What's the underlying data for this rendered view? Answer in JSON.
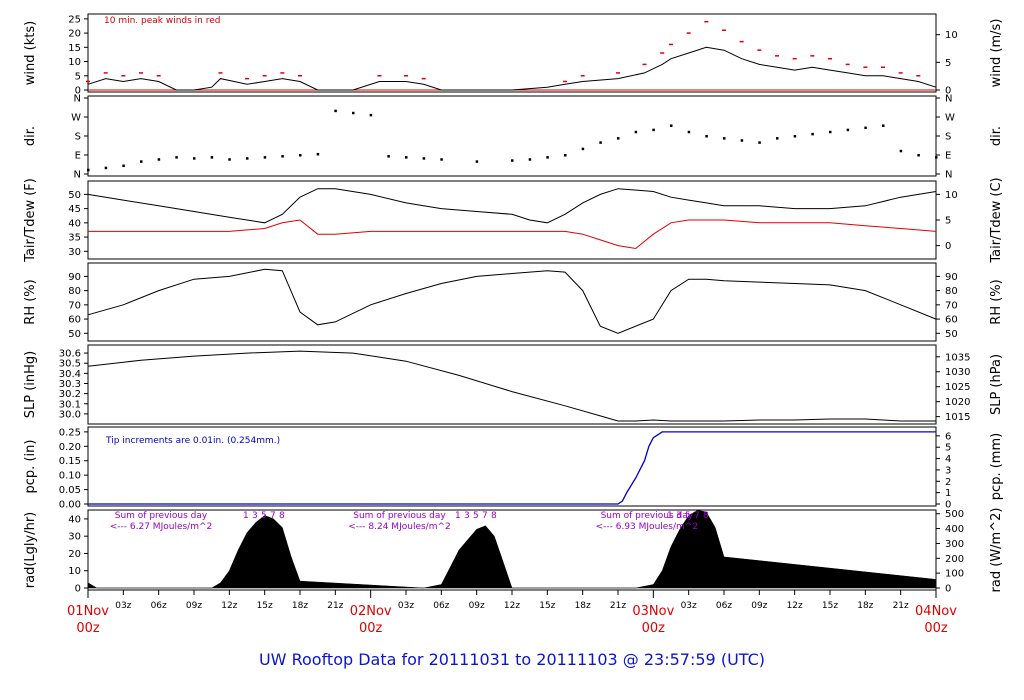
{
  "footer": {
    "title": "UW Rooftop Data for 20111031  to  20111103 @ 23:57:59  (UTC)"
  },
  "colors": {
    "primary": "#000000",
    "peak": "#e00000",
    "dew": "#e00000",
    "precip": "#0000d0",
    "note_wind": "#d00000",
    "note_precip": "#0000c0",
    "note_rad": "#9900cc",
    "date_label": "#e00000",
    "title": "#0a14d2"
  },
  "chart_data": [
    {
      "type": "line",
      "panel": "wind",
      "ylabel_left": "wind (kts)",
      "ylabel_right": "wind (m/s)",
      "yticks_left": [
        "0",
        "5",
        "10",
        "15",
        "20",
        "25"
      ],
      "yticks_right": [
        "0",
        "5",
        "10"
      ],
      "ylim": [
        0,
        26
      ],
      "annotation": "10 min. peak winds in red",
      "series": [
        {
          "style": "mean",
          "x": [
            0,
            2,
            4,
            6,
            8,
            10,
            12,
            14,
            15,
            18,
            20,
            22,
            24,
            26,
            28,
            30,
            33,
            36,
            38,
            40,
            44,
            48,
            52,
            54,
            56,
            60,
            63,
            65,
            66,
            68,
            70,
            72,
            74,
            76,
            78,
            80,
            82,
            84,
            86,
            88,
            90,
            92,
            94,
            96
          ],
          "y": [
            2,
            4,
            3,
            4,
            3,
            0,
            0,
            1,
            4,
            2,
            3,
            4,
            3,
            0,
            0,
            0,
            3,
            3,
            2,
            0,
            0,
            0,
            1,
            2,
            3,
            4,
            6,
            9,
            11,
            13,
            15,
            14,
            11,
            9,
            8,
            7,
            8,
            7,
            6,
            5,
            5,
            4,
            3,
            1
          ]
        },
        {
          "style": "peak",
          "x": [
            0,
            2,
            4,
            6,
            8,
            10,
            12,
            14,
            15,
            18,
            20,
            22,
            24,
            26,
            28,
            30,
            33,
            36,
            38,
            40,
            44,
            48,
            52,
            54,
            56,
            60,
            63,
            65,
            66,
            68,
            70,
            72,
            74,
            76,
            78,
            80,
            82,
            84,
            86,
            88,
            90,
            92,
            94,
            96
          ],
          "y": [
            3,
            6,
            5,
            6,
            5,
            0,
            0,
            0,
            6,
            4,
            5,
            6,
            5,
            0,
            0,
            0,
            5,
            5,
            4,
            0,
            0,
            0,
            0,
            3,
            5,
            6,
            9,
            13,
            16,
            20,
            24,
            21,
            17,
            14,
            12,
            11,
            12,
            11,
            9,
            8,
            8,
            6,
            5,
            0
          ]
        }
      ]
    },
    {
      "type": "scatter",
      "panel": "dir",
      "ylabel_left": "dir.",
      "ylabel_right": "dir.",
      "yticks": [
        "N",
        "E",
        "S",
        "W",
        "N"
      ],
      "ylim": [
        0,
        360
      ],
      "series": [
        {
          "x": [
            0,
            2,
            4,
            6,
            8,
            10,
            12,
            14,
            16,
            18,
            20,
            22,
            24,
            26,
            28,
            30,
            32,
            34,
            36,
            38,
            40,
            44,
            48,
            50,
            52,
            54,
            56,
            58,
            60,
            62,
            64,
            66,
            68,
            70,
            72,
            74,
            76,
            78,
            80,
            82,
            84,
            86,
            88,
            90,
            92,
            94,
            96
          ],
          "y": [
            20,
            30,
            40,
            60,
            70,
            80,
            75,
            80,
            70,
            75,
            80,
            85,
            90,
            95,
            300,
            290,
            280,
            85,
            80,
            75,
            70,
            60,
            65,
            70,
            80,
            90,
            120,
            150,
            170,
            200,
            210,
            230,
            200,
            180,
            170,
            160,
            150,
            170,
            180,
            190,
            200,
            210,
            220,
            230,
            110,
            90,
            80
          ]
        }
      ]
    },
    {
      "type": "line",
      "panel": "temp",
      "ylabel_left": "Tair/Tdew (F)",
      "ylabel_right": "Tair/Tdew (C)",
      "yticks_left": [
        "30",
        "35",
        "40",
        "45",
        "50"
      ],
      "yticks_right": [
        "0",
        "5",
        "10"
      ],
      "ylim": [
        28,
        54
      ],
      "series": [
        {
          "name": "Tair",
          "x": [
            0,
            4,
            8,
            12,
            16,
            20,
            22,
            24,
            26,
            28,
            32,
            36,
            40,
            44,
            48,
            50,
            52,
            54,
            56,
            58,
            60,
            64,
            66,
            68,
            70,
            72,
            76,
            80,
            84,
            88,
            92,
            96
          ],
          "y": [
            50,
            48,
            46,
            44,
            42,
            40,
            43,
            49,
            52,
            52,
            50,
            47,
            45,
            44,
            43,
            41,
            40,
            43,
            47,
            50,
            52,
            51,
            49,
            48,
            47,
            46,
            46,
            45,
            45,
            46,
            49,
            51
          ]
        },
        {
          "name": "Tdew",
          "x": [
            0,
            4,
            8,
            12,
            16,
            20,
            22,
            24,
            26,
            28,
            32,
            36,
            40,
            44,
            48,
            50,
            52,
            54,
            56,
            58,
            60,
            62,
            64,
            66,
            68,
            70,
            72,
            76,
            80,
            84,
            88,
            92,
            96
          ],
          "y": [
            37,
            37,
            37,
            37,
            37,
            38,
            40,
            41,
            36,
            36,
            37,
            37,
            37,
            37,
            37,
            37,
            37,
            37,
            36,
            34,
            32,
            31,
            36,
            40,
            41,
            41,
            41,
            40,
            40,
            40,
            39,
            38,
            37
          ]
        }
      ]
    },
    {
      "type": "line",
      "panel": "rh",
      "ylabel_left": "RH (%)",
      "ylabel_right": "RH (%)",
      "yticks_left": [
        "50",
        "60",
        "70",
        "80",
        "90"
      ],
      "yticks_right": [
        "50",
        "60",
        "70",
        "80",
        "90"
      ],
      "ylim": [
        46,
        98
      ],
      "series": [
        {
          "x": [
            0,
            4,
            8,
            12,
            16,
            20,
            22,
            24,
            26,
            28,
            32,
            36,
            40,
            44,
            48,
            50,
            52,
            54,
            56,
            58,
            60,
            64,
            66,
            68,
            70,
            72,
            76,
            80,
            84,
            88,
            92,
            96
          ],
          "y": [
            63,
            70,
            80,
            88,
            90,
            95,
            94,
            65,
            56,
            58,
            70,
            78,
            85,
            90,
            92,
            93,
            94,
            93,
            80,
            55,
            50,
            60,
            80,
            88,
            88,
            87,
            86,
            85,
            84,
            80,
            70,
            60
          ]
        }
      ]
    },
    {
      "type": "line",
      "panel": "slp",
      "ylabel_left": "SLP (inHg)",
      "ylabel_right": "SLP (hPa)",
      "yticks_left": [
        "30.0",
        "30.1",
        "30.2",
        "30.3",
        "30.4",
        "30.5",
        "30.6"
      ],
      "yticks_right": [
        "1015",
        "1020",
        "1025",
        "1030",
        "1035"
      ],
      "ylim": [
        29.92,
        30.66
      ],
      "series": [
        {
          "x": [
            0,
            6,
            12,
            18,
            24,
            30,
            36,
            42,
            48,
            54,
            58,
            60,
            62,
            64,
            66,
            68,
            72,
            76,
            80,
            84,
            88,
            92,
            96
          ],
          "y": [
            30.47,
            30.53,
            30.57,
            30.6,
            30.62,
            30.6,
            30.52,
            30.38,
            30.22,
            30.08,
            29.98,
            29.93,
            29.93,
            29.94,
            29.93,
            29.93,
            29.93,
            29.94,
            29.94,
            29.95,
            29.95,
            29.93,
            29.93
          ]
        }
      ]
    },
    {
      "type": "line",
      "panel": "pcp",
      "ylabel_left": "pcp. (in)",
      "ylabel_right": "pcp. (mm)",
      "yticks_left": [
        "0.00",
        "0.05",
        "0.10",
        "0.15",
        "0.20",
        "0.25"
      ],
      "yticks_right": [
        "0",
        "1",
        "2",
        "3",
        "4",
        "5",
        "6"
      ],
      "ylim": [
        0,
        0.26
      ],
      "annotation": "Tip increments are 0.01in. (0.254mm.)",
      "series": [
        {
          "x": [
            0,
            60,
            60.5,
            61,
            62,
            63,
            63.5,
            64,
            64.5,
            65,
            66,
            72,
            96
          ],
          "y": [
            0,
            0,
            0.01,
            0.04,
            0.09,
            0.15,
            0.2,
            0.23,
            0.24,
            0.25,
            0.25,
            0.25,
            0.25
          ]
        }
      ]
    },
    {
      "type": "area",
      "panel": "rad",
      "ylabel_left": "rad(Lgly/hr)",
      "ylabel_right": "rad (W/m^2)",
      "yticks_left": [
        "0",
        "10",
        "20",
        "30",
        "40"
      ],
      "yticks_right": [
        "0",
        "100",
        "200",
        "300",
        "400",
        "500"
      ],
      "ylim": [
        0,
        44
      ],
      "annotations": [
        {
          "line1": "Sum of previous day",
          "line2": "<--- 6.27 MJoules/m^2",
          "x": 6
        },
        {
          "line1": "Sum of previous day",
          "line2": "<--- 8.24 MJoules/m^2",
          "x": 33
        },
        {
          "line1": "Sum of previous day",
          "line2": "<--- 6.93 MJoules/m^2",
          "x": 61
        }
      ],
      "day_markers": [
        "1",
        "3",
        "5",
        "7",
        "8"
      ],
      "series": [
        {
          "x": [
            0,
            1,
            14,
            15,
            16,
            17,
            18,
            19,
            20,
            21,
            22,
            23,
            24,
            38,
            40,
            41,
            42,
            43,
            44,
            45,
            46,
            47,
            48,
            52,
            62,
            64,
            65,
            66,
            67,
            68,
            69,
            70,
            71,
            72,
            96
          ],
          "y": [
            3,
            0,
            0,
            3,
            10,
            22,
            32,
            38,
            42,
            40,
            35,
            18,
            4,
            0,
            2,
            12,
            22,
            28,
            34,
            36,
            30,
            15,
            0,
            0,
            0,
            2,
            10,
            24,
            34,
            42,
            45,
            44,
            35,
            18,
            5
          ]
        }
      ]
    },
    {
      "type": "axis",
      "panel": "time",
      "xlabels": [
        "01Nov",
        "03z",
        "06z",
        "09z",
        "12z",
        "15z",
        "18z",
        "21z",
        "02Nov",
        "03z",
        "06z",
        "09z",
        "12z",
        "15z",
        "18z",
        "21z",
        "03Nov",
        "03z",
        "06z",
        "09z",
        "12z",
        "15z",
        "18z",
        "21z",
        "04Nov"
      ],
      "date_hours": [
        "00z",
        "00z",
        "00z",
        "00z"
      ],
      "xlim": [
        0,
        96
      ],
      "xunit": "hours from 01Nov 00z"
    }
  ]
}
